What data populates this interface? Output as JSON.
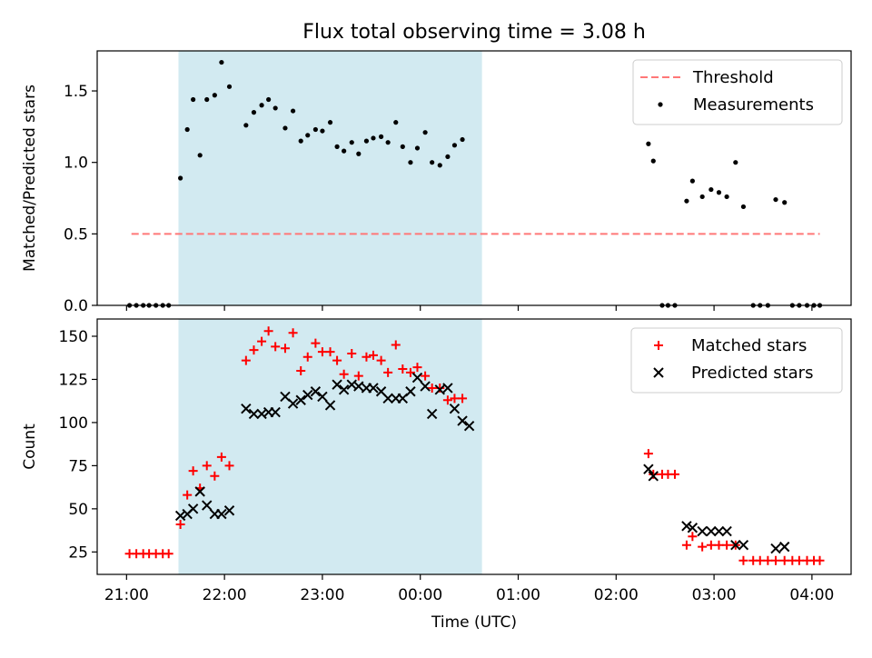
{
  "title": "Flux total observing time = 3.08 h",
  "xlabel": "Time (UTC)",
  "colors": {
    "threshold": "#ff7777",
    "measurement": "#000000",
    "matched": "#ff0000",
    "predicted": "#000000",
    "shade": "#add8e6"
  },
  "chart_data": [
    {
      "type": "scatter",
      "ylabel": "Matched/Predicted stars",
      "ylim": [
        0,
        1.78
      ],
      "yticks": [
        0.0,
        0.5,
        1.0,
        1.5
      ],
      "ytick_labels": [
        "0.0",
        "0.5",
        "1.0",
        "1.5"
      ],
      "xlim": [
        20.7,
        28.4
      ],
      "xticks": [
        21,
        22,
        23,
        24,
        25,
        26,
        27,
        28
      ],
      "xtick_labels": [
        "21:00",
        "22:00",
        "23:00",
        "00:00",
        "01:00",
        "02:00",
        "03:00",
        "04:00"
      ],
      "show_xtick_labels": false,
      "shaded_span": [
        21.53,
        24.63
      ],
      "legend_position": "top-right",
      "threshold": {
        "name": "Threshold",
        "x": [
          21.05,
          28.08
        ],
        "y": 0.5
      },
      "series": [
        {
          "name": "Measurements",
          "points": [
            [
              21.03,
              0.0
            ],
            [
              21.1,
              0.0
            ],
            [
              21.17,
              0.0
            ],
            [
              21.23,
              0.0
            ],
            [
              21.3,
              0.0
            ],
            [
              21.37,
              0.0
            ],
            [
              21.43,
              0.0
            ],
            [
              21.55,
              0.89
            ],
            [
              21.62,
              1.23
            ],
            [
              21.68,
              1.44
            ],
            [
              21.75,
              1.05
            ],
            [
              21.82,
              1.44
            ],
            [
              21.9,
              1.47
            ],
            [
              21.97,
              1.7
            ],
            [
              22.05,
              1.53
            ],
            [
              22.22,
              1.26
            ],
            [
              22.3,
              1.35
            ],
            [
              22.38,
              1.4
            ],
            [
              22.45,
              1.44
            ],
            [
              22.52,
              1.38
            ],
            [
              22.62,
              1.24
            ],
            [
              22.7,
              1.36
            ],
            [
              22.78,
              1.15
            ],
            [
              22.85,
              1.19
            ],
            [
              22.93,
              1.23
            ],
            [
              23.0,
              1.22
            ],
            [
              23.08,
              1.28
            ],
            [
              23.15,
              1.11
            ],
            [
              23.22,
              1.08
            ],
            [
              23.3,
              1.14
            ],
            [
              23.37,
              1.06
            ],
            [
              23.45,
              1.15
            ],
            [
              23.52,
              1.17
            ],
            [
              23.6,
              1.18
            ],
            [
              23.67,
              1.14
            ],
            [
              23.75,
              1.28
            ],
            [
              23.82,
              1.11
            ],
            [
              23.9,
              1.0
            ],
            [
              23.97,
              1.1
            ],
            [
              24.05,
              1.21
            ],
            [
              24.12,
              1.0
            ],
            [
              24.2,
              0.98
            ],
            [
              24.28,
              1.04
            ],
            [
              24.35,
              1.12
            ],
            [
              24.43,
              1.16
            ],
            [
              26.33,
              1.13
            ],
            [
              26.38,
              1.01
            ],
            [
              26.47,
              0.0
            ],
            [
              26.53,
              0.0
            ],
            [
              26.6,
              0.0
            ],
            [
              26.72,
              0.73
            ],
            [
              26.78,
              0.87
            ],
            [
              26.88,
              0.76
            ],
            [
              26.97,
              0.81
            ],
            [
              27.05,
              0.79
            ],
            [
              27.13,
              0.76
            ],
            [
              27.22,
              1.0
            ],
            [
              27.3,
              0.69
            ],
            [
              27.4,
              0.0
            ],
            [
              27.47,
              0.0
            ],
            [
              27.55,
              0.0
            ],
            [
              27.63,
              0.74
            ],
            [
              27.72,
              0.72
            ],
            [
              27.8,
              0.0
            ],
            [
              27.87,
              0.0
            ],
            [
              27.95,
              0.0
            ],
            [
              28.02,
              0.0
            ],
            [
              28.08,
              0.0
            ]
          ]
        }
      ]
    },
    {
      "type": "scatter",
      "ylabel": "Count",
      "ylim": [
        12,
        160
      ],
      "yticks": [
        25,
        50,
        75,
        100,
        125,
        150
      ],
      "ytick_labels": [
        "25",
        "50",
        "75",
        "100",
        "125",
        "150"
      ],
      "xlim": [
        20.7,
        28.4
      ],
      "xticks": [
        21,
        22,
        23,
        24,
        25,
        26,
        27,
        28
      ],
      "xtick_labels": [
        "21:00",
        "22:00",
        "23:00",
        "00:00",
        "01:00",
        "02:00",
        "03:00",
        "04:00"
      ],
      "show_xtick_labels": true,
      "shaded_span": [
        21.53,
        24.63
      ],
      "legend_position": "top-right",
      "series": [
        {
          "name": "Matched stars",
          "marker": "plus",
          "points": [
            [
              21.03,
              24
            ],
            [
              21.1,
              24
            ],
            [
              21.17,
              24
            ],
            [
              21.23,
              24
            ],
            [
              21.3,
              24
            ],
            [
              21.37,
              24
            ],
            [
              21.43,
              24
            ],
            [
              21.55,
              41
            ],
            [
              21.62,
              58
            ],
            [
              21.68,
              72
            ],
            [
              21.75,
              62
            ],
            [
              21.82,
              75
            ],
            [
              21.9,
              69
            ],
            [
              21.97,
              80
            ],
            [
              22.05,
              75
            ],
            [
              22.22,
              136
            ],
            [
              22.3,
              142
            ],
            [
              22.38,
              147
            ],
            [
              22.45,
              153
            ],
            [
              22.52,
              144
            ],
            [
              22.62,
              143
            ],
            [
              22.7,
              152
            ],
            [
              22.78,
              130
            ],
            [
              22.85,
              138
            ],
            [
              22.93,
              146
            ],
            [
              23.0,
              141
            ],
            [
              23.08,
              141
            ],
            [
              23.15,
              136
            ],
            [
              23.22,
              128
            ],
            [
              23.3,
              140
            ],
            [
              23.37,
              127
            ],
            [
              23.45,
              138
            ],
            [
              23.52,
              139
            ],
            [
              23.6,
              136
            ],
            [
              23.67,
              129
            ],
            [
              23.75,
              145
            ],
            [
              23.82,
              131
            ],
            [
              23.9,
              129
            ],
            [
              23.97,
              132
            ],
            [
              24.05,
              127
            ],
            [
              24.12,
              120
            ],
            [
              24.2,
              120
            ],
            [
              24.28,
              113
            ],
            [
              24.35,
              114
            ],
            [
              24.43,
              114
            ],
            [
              26.33,
              82
            ],
            [
              26.38,
              70
            ],
            [
              26.47,
              70
            ],
            [
              26.53,
              70
            ],
            [
              26.6,
              70
            ],
            [
              26.72,
              29
            ],
            [
              26.78,
              34
            ],
            [
              26.88,
              28
            ],
            [
              26.97,
              29
            ],
            [
              27.05,
              29
            ],
            [
              27.13,
              29
            ],
            [
              27.22,
              29
            ],
            [
              27.3,
              20
            ],
            [
              27.4,
              20
            ],
            [
              27.47,
              20
            ],
            [
              27.55,
              20
            ],
            [
              27.63,
              20
            ],
            [
              27.72,
              20
            ],
            [
              27.8,
              20
            ],
            [
              27.87,
              20
            ],
            [
              27.95,
              20
            ],
            [
              28.02,
              20
            ],
            [
              28.08,
              20
            ]
          ]
        },
        {
          "name": "Predicted stars",
          "marker": "x",
          "points": [
            [
              21.55,
              46
            ],
            [
              21.62,
              47
            ],
            [
              21.68,
              50
            ],
            [
              21.75,
              60
            ],
            [
              21.82,
              52
            ],
            [
              21.9,
              47
            ],
            [
              21.97,
              47
            ],
            [
              22.05,
              49
            ],
            [
              22.22,
              108
            ],
            [
              22.3,
              105
            ],
            [
              22.38,
              105
            ],
            [
              22.45,
              106
            ],
            [
              22.52,
              106
            ],
            [
              22.62,
              115
            ],
            [
              22.7,
              111
            ],
            [
              22.78,
              113
            ],
            [
              22.85,
              116
            ],
            [
              22.93,
              118
            ],
            [
              23.0,
              115
            ],
            [
              23.08,
              110
            ],
            [
              23.15,
              122
            ],
            [
              23.22,
              119
            ],
            [
              23.3,
              122
            ],
            [
              23.37,
              121
            ],
            [
              23.45,
              120
            ],
            [
              23.52,
              120
            ],
            [
              23.6,
              118
            ],
            [
              23.67,
              114
            ],
            [
              23.75,
              114
            ],
            [
              23.82,
              114
            ],
            [
              23.9,
              118
            ],
            [
              23.97,
              126
            ],
            [
              24.05,
              121
            ],
            [
              24.12,
              105
            ],
            [
              24.2,
              119
            ],
            [
              24.28,
              120
            ],
            [
              24.35,
              108
            ],
            [
              24.43,
              101
            ],
            [
              24.5,
              98
            ],
            [
              26.33,
              73
            ],
            [
              26.38,
              69
            ],
            [
              26.72,
              40
            ],
            [
              26.78,
              39
            ],
            [
              26.88,
              37
            ],
            [
              26.97,
              37
            ],
            [
              27.05,
              37
            ],
            [
              27.13,
              37
            ],
            [
              27.22,
              29
            ],
            [
              27.3,
              29
            ],
            [
              27.63,
              27
            ],
            [
              27.72,
              28
            ]
          ]
        }
      ]
    }
  ]
}
